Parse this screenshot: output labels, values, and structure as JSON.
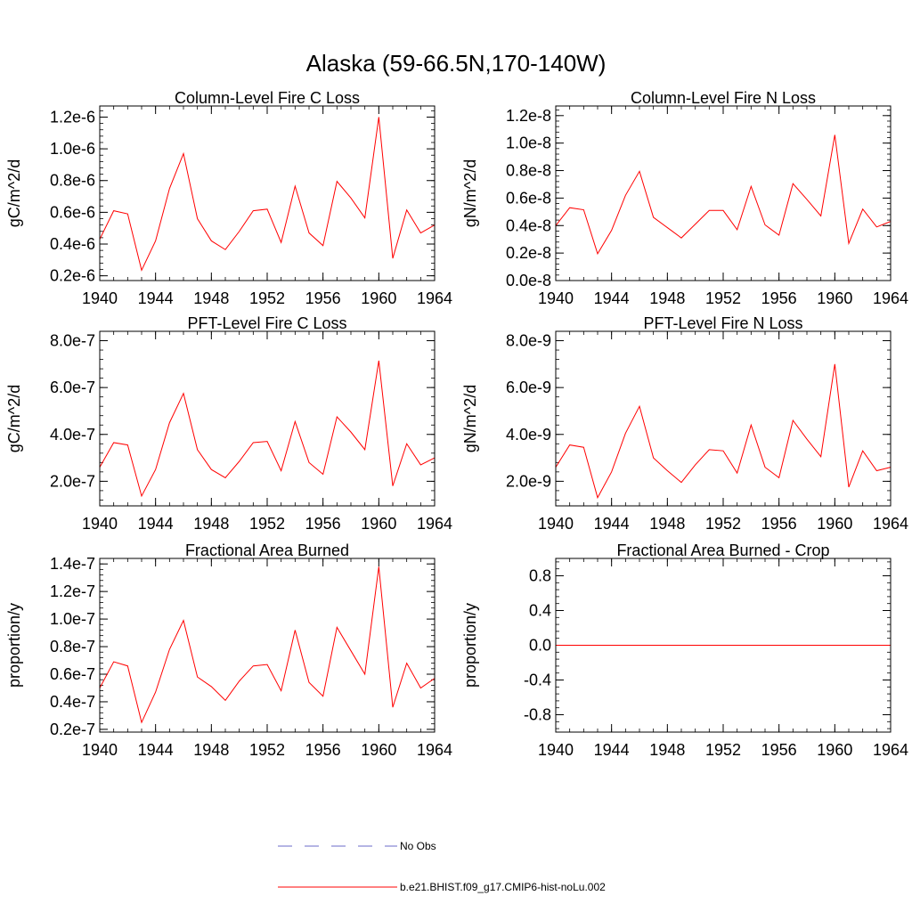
{
  "figure": {
    "title": "Alaska (59-66.5N,170-140W)"
  },
  "legend": {
    "position": "bottom-center",
    "entries": [
      {
        "label": "No Obs",
        "color": "#6b6bc8",
        "dash": true
      },
      {
        "label": "b.e21.BHIST.f09_g17.CMIP6-hist-noLu.002",
        "color": "#ff0000",
        "dash": false
      }
    ]
  },
  "chart_data": [
    {
      "type": "line",
      "title": "Column-Level Fire C Loss",
      "ylabel": "gC/m^2/d",
      "x": [
        1940,
        1941,
        1942,
        1943,
        1944,
        1945,
        1946,
        1947,
        1948,
        1949,
        1950,
        1951,
        1952,
        1953,
        1954,
        1955,
        1956,
        1957,
        1958,
        1959,
        1960,
        1961,
        1962,
        1963,
        1964
      ],
      "xlim": [
        1940,
        1964
      ],
      "xticks": [
        1940,
        1944,
        1948,
        1952,
        1956,
        1960,
        1964
      ],
      "ylim": [
        1.7e-07,
        1.27e-06
      ],
      "yticks": [
        2e-07,
        4e-07,
        6e-07,
        8e-07,
        1e-06,
        1.2e-06
      ],
      "yticklabels": [
        "0.2e-6",
        "0.4e-6",
        "0.6e-6",
        "0.8e-6",
        "1.0e-6",
        "1.2e-6"
      ],
      "series": [
        {
          "color": "#ff0000",
          "values": [
            4.3e-07,
            6.1e-07,
            5.9e-07,
            2.35e-07,
            4.2e-07,
            7.5e-07,
            9.7e-07,
            5.6e-07,
            4.2e-07,
            3.65e-07,
            4.8e-07,
            6.1e-07,
            6.2e-07,
            4.1e-07,
            7.65e-07,
            4.7e-07,
            3.9e-07,
            7.95e-07,
            6.9e-07,
            5.65e-07,
            1.2e-06,
            3.1e-07,
            6.15e-07,
            4.7e-07,
            5.2e-07
          ]
        }
      ]
    },
    {
      "type": "line",
      "title": "Column-Level Fire N Loss",
      "ylabel": "gN/m^2/d",
      "x": [
        1940,
        1941,
        1942,
        1943,
        1944,
        1945,
        1946,
        1947,
        1948,
        1949,
        1950,
        1951,
        1952,
        1953,
        1954,
        1955,
        1956,
        1957,
        1958,
        1959,
        1960,
        1961,
        1962,
        1963,
        1964
      ],
      "xlim": [
        1940,
        1964
      ],
      "xticks": [
        1940,
        1944,
        1948,
        1952,
        1956,
        1960,
        1964
      ],
      "ylim": [
        0,
        1.27e-08
      ],
      "yticks": [
        0,
        2e-09,
        4e-09,
        6e-09,
        8e-09,
        1e-08,
        1.2e-08
      ],
      "yticklabels": [
        "0.0e-8",
        "0.2e-8",
        "0.4e-8",
        "0.6e-8",
        "0.8e-8",
        "1.0e-8",
        "1.2e-8"
      ],
      "series": [
        {
          "color": "#ff0000",
          "values": [
            4e-09,
            5.3e-09,
            5.15e-09,
            1.95e-09,
            3.65e-09,
            6.2e-09,
            7.95e-09,
            4.6e-09,
            3.85e-09,
            3.1e-09,
            4.1e-09,
            5.1e-09,
            5.1e-09,
            3.7e-09,
            6.85e-09,
            4.05e-09,
            3.3e-09,
            7.05e-09,
            5.9e-09,
            4.7e-09,
            1.06e-08,
            2.7e-09,
            5.2e-09,
            3.9e-09,
            4.3e-09
          ]
        }
      ]
    },
    {
      "type": "line",
      "title": "PFT-Level Fire C Loss",
      "ylabel": "gC/m^2/d",
      "x": [
        1940,
        1941,
        1942,
        1943,
        1944,
        1945,
        1946,
        1947,
        1948,
        1949,
        1950,
        1951,
        1952,
        1953,
        1954,
        1955,
        1956,
        1957,
        1958,
        1959,
        1960,
        1961,
        1962,
        1963,
        1964
      ],
      "xlim": [
        1940,
        1964
      ],
      "xticks": [
        1940,
        1944,
        1948,
        1952,
        1956,
        1960,
        1964
      ],
      "ylim": [
        9.5e-08,
        8.4e-07
      ],
      "yticks": [
        2e-07,
        4e-07,
        6e-07,
        8e-07
      ],
      "yticklabels": [
        "2.0e-7",
        "4.0e-7",
        "6.0e-7",
        "8.0e-7"
      ],
      "series": [
        {
          "color": "#ff0000",
          "values": [
            2.6e-07,
            3.65e-07,
            3.55e-07,
            1.37e-07,
            2.5e-07,
            4.5e-07,
            5.75e-07,
            3.35e-07,
            2.5e-07,
            2.15e-07,
            2.85e-07,
            3.65e-07,
            3.7e-07,
            2.45e-07,
            4.55e-07,
            2.8e-07,
            2.3e-07,
            4.75e-07,
            4.1e-07,
            3.35e-07,
            7.15e-07,
            1.8e-07,
            3.6e-07,
            2.7e-07,
            3e-07
          ]
        }
      ]
    },
    {
      "type": "line",
      "title": "PFT-Level Fire N Loss",
      "ylabel": "gN/m^2/d",
      "x": [
        1940,
        1941,
        1942,
        1943,
        1944,
        1945,
        1946,
        1947,
        1948,
        1949,
        1950,
        1951,
        1952,
        1953,
        1954,
        1955,
        1956,
        1957,
        1958,
        1959,
        1960,
        1961,
        1962,
        1963,
        1964
      ],
      "xlim": [
        1940,
        1964
      ],
      "xticks": [
        1940,
        1944,
        1948,
        1952,
        1956,
        1960,
        1964
      ],
      "ylim": [
        9.5e-10,
        8.4e-09
      ],
      "yticks": [
        2e-09,
        4e-09,
        6e-09,
        8e-09
      ],
      "yticklabels": [
        "2.0e-9",
        "4.0e-9",
        "6.0e-9",
        "8.0e-9"
      ],
      "series": [
        {
          "color": "#ff0000",
          "values": [
            2.6e-09,
            3.55e-09,
            3.45e-09,
            1.3e-09,
            2.4e-09,
            4.05e-09,
            5.2e-09,
            3e-09,
            2.45e-09,
            1.95e-09,
            2.7e-09,
            3.35e-09,
            3.3e-09,
            2.35e-09,
            4.4e-09,
            2.6e-09,
            2.15e-09,
            4.6e-09,
            3.8e-09,
            3.05e-09,
            7e-09,
            1.75e-09,
            3.3e-09,
            2.45e-09,
            2.6e-09
          ]
        }
      ]
    },
    {
      "type": "line",
      "title": "Fractional Area Burned",
      "ylabel": "proportion/y",
      "x": [
        1940,
        1941,
        1942,
        1943,
        1944,
        1945,
        1946,
        1947,
        1948,
        1949,
        1950,
        1951,
        1952,
        1953,
        1954,
        1955,
        1956,
        1957,
        1958,
        1959,
        1960,
        1961,
        1962,
        1963,
        1964
      ],
      "xlim": [
        1940,
        1964
      ],
      "xticks": [
        1940,
        1944,
        1948,
        1952,
        1956,
        1960,
        1964
      ],
      "ylim": [
        1.8e-08,
        1.44e-07
      ],
      "yticks": [
        2e-08,
        4e-08,
        6e-08,
        8e-08,
        1e-07,
        1.2e-07,
        1.4e-07
      ],
      "yticklabels": [
        "0.2e-7",
        "0.4e-7",
        "0.6e-7",
        "0.8e-7",
        "1.0e-7",
        "1.2e-7",
        "1.4e-7"
      ],
      "series": [
        {
          "color": "#ff0000",
          "values": [
            5e-08,
            6.9e-08,
            6.6e-08,
            2.5e-08,
            4.7e-08,
            7.8e-08,
            9.9e-08,
            5.8e-08,
            5.1e-08,
            4.1e-08,
            5.5e-08,
            6.6e-08,
            6.7e-08,
            4.8e-08,
            9.2e-08,
            5.4e-08,
            4.4e-08,
            9.4e-08,
            7.7e-08,
            6e-08,
            1.38e-07,
            3.6e-08,
            6.8e-08,
            5e-08,
            5.7e-08
          ]
        }
      ]
    },
    {
      "type": "line",
      "title": "Fractional Area Burned - Crop",
      "ylabel": "proportion/y",
      "x": [
        1940,
        1941,
        1942,
        1943,
        1944,
        1945,
        1946,
        1947,
        1948,
        1949,
        1950,
        1951,
        1952,
        1953,
        1954,
        1955,
        1956,
        1957,
        1958,
        1959,
        1960,
        1961,
        1962,
        1963,
        1964
      ],
      "xlim": [
        1940,
        1964
      ],
      "xticks": [
        1940,
        1944,
        1948,
        1952,
        1956,
        1960,
        1964
      ],
      "ylim": [
        -1.0,
        1.0
      ],
      "yticks": [
        -0.8,
        -0.4,
        0.0,
        0.4,
        0.8
      ],
      "yticklabels": [
        "-0.8",
        "-0.4",
        "0.0",
        "0.4",
        "0.8"
      ],
      "series": [
        {
          "color": "#ff0000",
          "values": [
            0,
            0,
            0,
            0,
            0,
            0,
            0,
            0,
            0,
            0,
            0,
            0,
            0,
            0,
            0,
            0,
            0,
            0,
            0,
            0,
            0,
            0,
            0,
            0,
            0
          ]
        }
      ]
    }
  ]
}
